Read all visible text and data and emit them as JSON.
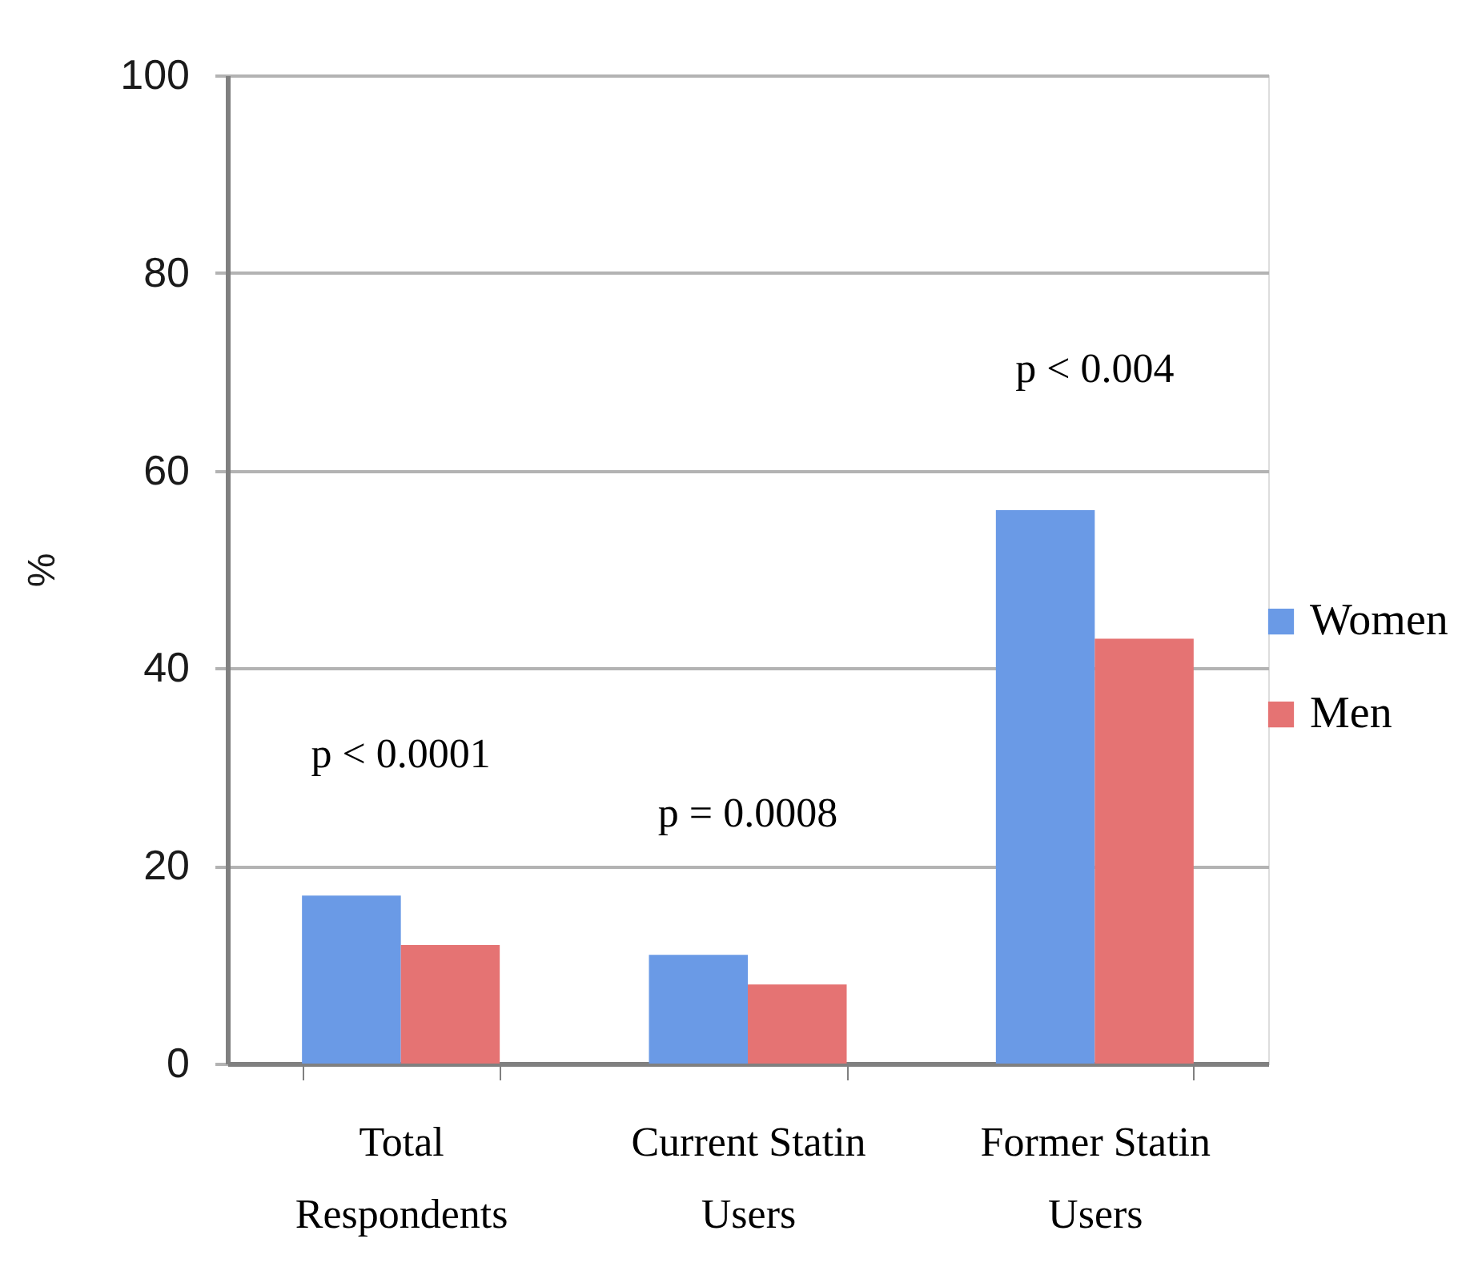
{
  "chart_data": {
    "type": "bar",
    "categories": [
      "Total Respondents",
      "Current Statin Users",
      "Former Statin Users"
    ],
    "series": [
      {
        "name": "Women",
        "color": "#6a9ae6",
        "values": [
          17,
          11,
          56
        ]
      },
      {
        "name": "Men",
        "color": "#e57373",
        "values": [
          12,
          8,
          43
        ]
      }
    ],
    "ylabel": "%",
    "ylim": [
      0,
      100
    ],
    "yticks": [
      0,
      20,
      40,
      60,
      80,
      100
    ],
    "grid": "y",
    "legend": "right",
    "annotations": [
      "p < 0.0001",
      "p = 0.0008",
      "p < 0.004"
    ]
  }
}
